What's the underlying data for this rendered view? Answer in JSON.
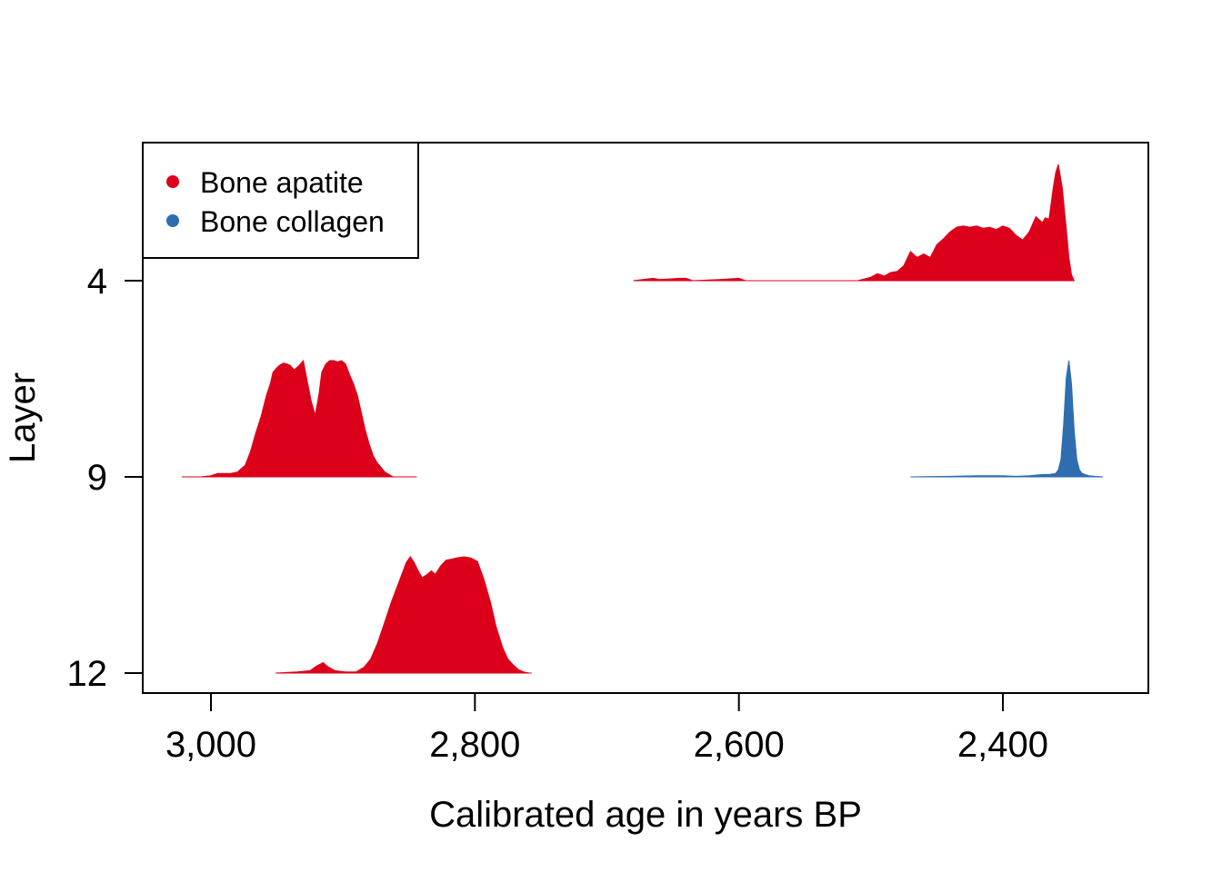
{
  "chart_data": {
    "type": "area",
    "subtype": "ridgeline-density",
    "xlabel": "Calibrated age in years BP",
    "ylabel": "Layer",
    "x_reversed": true,
    "xlim": [
      3026,
      2307
    ],
    "x_ticks": [
      3000,
      2800,
      2600,
      2400
    ],
    "x_tick_labels": [
      "3,000",
      "2,800",
      "2,600",
      "2,400"
    ],
    "y_ticks": [
      4,
      9,
      12
    ],
    "y_tick_labels": [
      "4",
      "9",
      "12"
    ],
    "legend": {
      "placement": "top-left",
      "entries": [
        {
          "label": "Bone apatite",
          "color": "#DC001A"
        },
        {
          "label": "Bone collagen",
          "color": "#2E6DB0"
        }
      ]
    },
    "grid": false,
    "series": [
      {
        "material": "Bone apatite",
        "layer": 4,
        "color": "#DC001A",
        "x": [
          2680,
          2665,
          2660,
          2645,
          2640,
          2635,
          2615,
          2600,
          2595,
          2510,
          2500,
          2495,
          2490,
          2485,
          2480,
          2475,
          2470,
          2465,
          2460,
          2455,
          2450,
          2445,
          2440,
          2435,
          2430,
          2425,
          2420,
          2415,
          2410,
          2405,
          2400,
          2395,
          2390,
          2385,
          2380,
          2375,
          2370,
          2368,
          2365,
          2362,
          2360,
          2358,
          2355,
          2352,
          2350,
          2348,
          2346
        ],
        "density": [
          0,
          0.02,
          0.01,
          0.02,
          0.02,
          0,
          0.01,
          0.02,
          0,
          0,
          0.03,
          0.06,
          0.04,
          0.07,
          0.08,
          0.13,
          0.25,
          0.2,
          0.23,
          0.2,
          0.31,
          0.36,
          0.42,
          0.46,
          0.47,
          0.46,
          0.47,
          0.45,
          0.46,
          0.44,
          0.47,
          0.45,
          0.39,
          0.35,
          0.42,
          0.55,
          0.5,
          0.54,
          0.53,
          0.79,
          0.93,
          1.0,
          0.8,
          0.45,
          0.2,
          0.05,
          0
        ]
      },
      {
        "material": "Bone apatite",
        "layer": 9,
        "color": "#DC001A",
        "x": [
          3022,
          3008,
          3000,
          2995,
          2985,
          2980,
          2978,
          2974,
          2970,
          2966,
          2962,
          2958,
          2955,
          2953,
          2950,
          2948,
          2945,
          2942,
          2940,
          2937,
          2933,
          2930,
          2927,
          2924,
          2921,
          2918,
          2916,
          2913,
          2910,
          2907,
          2904,
          2901,
          2898,
          2895,
          2892,
          2889,
          2886,
          2883,
          2880,
          2877,
          2874,
          2871,
          2868,
          2865,
          2862,
          2859,
          2856,
          2853,
          2850,
          2847,
          2844
        ],
        "density": [
          0,
          0,
          0.01,
          0.03,
          0.03,
          0.04,
          0.06,
          0.1,
          0.22,
          0.38,
          0.52,
          0.7,
          0.8,
          0.9,
          0.94,
          0.96,
          0.98,
          0.97,
          0.96,
          0.92,
          0.96,
          1.0,
          0.82,
          0.65,
          0.53,
          0.72,
          0.9,
          0.97,
          1.0,
          1.0,
          0.99,
          1.0,
          0.97,
          0.88,
          0.8,
          0.7,
          0.55,
          0.4,
          0.28,
          0.18,
          0.12,
          0.08,
          0.04,
          0.02,
          0.0,
          0,
          0,
          0,
          0,
          0,
          0
        ]
      },
      {
        "material": "Bone collagen",
        "layer": 9,
        "color": "#2E6DB0",
        "x": [
          2470,
          2440,
          2420,
          2400,
          2390,
          2380,
          2370,
          2365,
          2360,
          2358,
          2356,
          2354,
          2352,
          2350,
          2348,
          2346,
          2344,
          2342,
          2340,
          2335,
          2330,
          2324
        ],
        "density": [
          0,
          0.005,
          0.01,
          0.01,
          0.005,
          0.01,
          0.02,
          0.02,
          0.03,
          0.06,
          0.15,
          0.45,
          0.85,
          1.0,
          0.8,
          0.4,
          0.15,
          0.06,
          0.03,
          0.01,
          0.005,
          0
        ]
      },
      {
        "material": "Bone apatite",
        "layer": 12,
        "color": "#DC001A",
        "x": [
          2951,
          2935,
          2925,
          2920,
          2915,
          2912,
          2906,
          2898,
          2890,
          2884,
          2879,
          2874,
          2868,
          2863,
          2857,
          2852,
          2849,
          2846,
          2843,
          2840,
          2836,
          2833,
          2830,
          2826,
          2822,
          2818,
          2814,
          2808,
          2803,
          2798,
          2793,
          2788,
          2784,
          2779,
          2775,
          2771,
          2767,
          2763,
          2759,
          2757
        ],
        "density": [
          0,
          0.01,
          0.02,
          0.06,
          0.09,
          0.06,
          0.02,
          0.01,
          0.01,
          0.05,
          0.12,
          0.25,
          0.45,
          0.62,
          0.8,
          0.95,
          1.0,
          0.95,
          0.88,
          0.82,
          0.85,
          0.88,
          0.85,
          0.92,
          0.97,
          0.98,
          0.99,
          1.0,
          0.99,
          0.96,
          0.8,
          0.6,
          0.4,
          0.22,
          0.12,
          0.07,
          0.03,
          0.01,
          0.0,
          0
        ]
      }
    ]
  }
}
